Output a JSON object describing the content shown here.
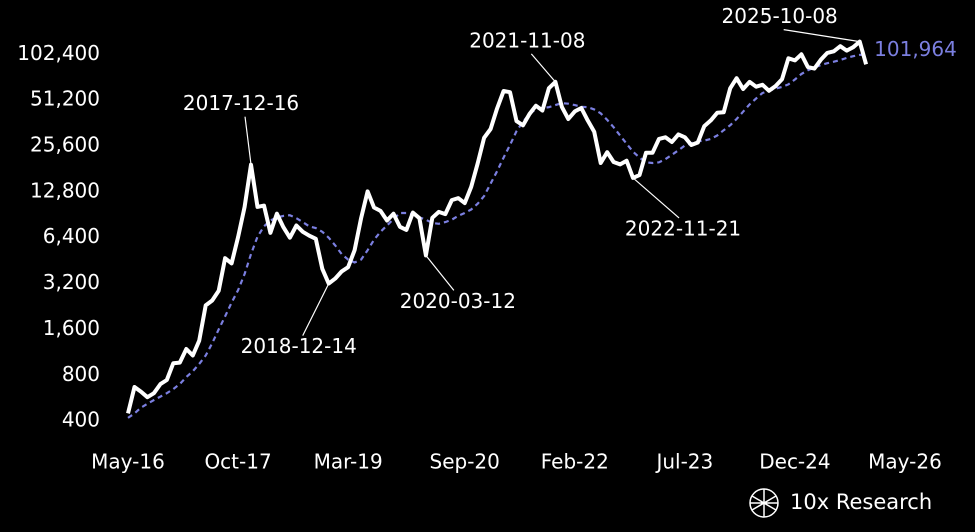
{
  "chart_data": {
    "type": "line",
    "log_scale": true,
    "grid": false,
    "x": [
      "2016-05",
      "2016-06",
      "2016-07",
      "2016-08",
      "2016-09",
      "2016-10",
      "2016-11",
      "2016-12",
      "2017-01",
      "2017-02",
      "2017-03",
      "2017-04",
      "2017-05",
      "2017-06",
      "2017-07",
      "2017-08",
      "2017-09",
      "2017-10",
      "2017-11",
      "2017-12",
      "2018-01",
      "2018-02",
      "2018-03",
      "2018-04",
      "2018-05",
      "2018-06",
      "2018-07",
      "2018-08",
      "2018-09",
      "2018-10",
      "2018-11",
      "2018-12",
      "2019-01",
      "2019-02",
      "2019-03",
      "2019-04",
      "2019-05",
      "2019-06",
      "2019-07",
      "2019-08",
      "2019-09",
      "2019-10",
      "2019-11",
      "2019-12",
      "2020-01",
      "2020-02",
      "2020-03",
      "2020-04",
      "2020-05",
      "2020-06",
      "2020-07",
      "2020-08",
      "2020-09",
      "2020-10",
      "2020-11",
      "2020-12",
      "2021-01",
      "2021-02",
      "2021-03",
      "2021-04",
      "2021-05",
      "2021-06",
      "2021-07",
      "2021-08",
      "2021-09",
      "2021-10",
      "2021-11",
      "2021-12",
      "2022-01",
      "2022-02",
      "2022-03",
      "2022-04",
      "2022-05",
      "2022-06",
      "2022-07",
      "2022-08",
      "2022-09",
      "2022-10",
      "2022-11",
      "2022-12",
      "2023-01",
      "2023-02",
      "2023-03",
      "2023-04",
      "2023-05",
      "2023-06",
      "2023-07",
      "2023-08",
      "2023-09",
      "2023-10",
      "2023-11",
      "2023-12",
      "2024-01",
      "2024-02",
      "2024-03",
      "2024-04",
      "2024-05",
      "2024-06",
      "2024-07",
      "2024-08",
      "2024-09",
      "2024-10",
      "2024-11",
      "2024-12",
      "2025-01",
      "2025-02",
      "2025-03",
      "2025-04",
      "2025-05",
      "2025-06",
      "2025-07",
      "2025-08",
      "2025-09",
      "2025-10",
      "2025-11"
    ],
    "series": [
      {
        "color": "#ffffff",
        "dashed": false,
        "values": [
          450,
          670,
          625,
          575,
          610,
          700,
          745,
          960,
          970,
          1190,
          1080,
          1350,
          2300,
          2480,
          2870,
          4700,
          4340,
          6470,
          10200,
          19300,
          10200,
          10400,
          6900,
          9200,
          7500,
          6400,
          7700,
          7000,
          6600,
          6300,
          4000,
          3200,
          3450,
          3850,
          4100,
          5300,
          8600,
          12900,
          10100,
          9600,
          8300,
          9200,
          7550,
          7200,
          9350,
          8600,
          4900,
          8650,
          9450,
          9150,
          11300,
          11650,
          10800,
          13800,
          19700,
          29000,
          33100,
          45200,
          58800,
          57700,
          37300,
          35000,
          41500,
          47100,
          43800,
          61300,
          67500,
          46300,
          38500,
          43200,
          45500,
          37700,
          31800,
          19800,
          23300,
          20100,
          19400,
          20500,
          15800,
          16500,
          23100,
          23100,
          28500,
          29200,
          27200,
          30500,
          29200,
          26000,
          27000,
          34600,
          37700,
          42300,
          42600,
          61200,
          71300,
          60600,
          67500,
          62700,
          64600,
          59000,
          63300,
          70200,
          96400,
          93400,
          102400,
          84400,
          82500,
          94200,
          104600,
          107100,
          115700,
          108200,
          114000,
          124000,
          88000
        ]
      },
      {
        "color": "#7b7fe0",
        "dashed": true,
        "values": [
          420,
          450,
          490,
          520,
          550,
          580,
          610,
          650,
          700,
          780,
          850,
          950,
          1080,
          1300,
          1600,
          1950,
          2400,
          2900,
          3700,
          5000,
          6500,
          7600,
          8300,
          8700,
          8900,
          9000,
          8600,
          8100,
          7600,
          7400,
          7000,
          6400,
          5700,
          5000,
          4600,
          4400,
          4600,
          5300,
          6200,
          7000,
          7700,
          8500,
          9300,
          9300,
          9100,
          8700,
          8400,
          8000,
          7900,
          8100,
          8400,
          8900,
          9300,
          9800,
          10700,
          12000,
          14500,
          17500,
          21500,
          26000,
          32000,
          37000,
          41500,
          44800,
          45500,
          46000,
          47500,
          49000,
          48500,
          47500,
          46300,
          46000,
          44500,
          42000,
          38000,
          34000,
          30000,
          26500,
          23500,
          21500,
          20000,
          19800,
          20000,
          21000,
          22400,
          24000,
          25800,
          26700,
          27500,
          27800,
          28500,
          30000,
          32500,
          35000,
          38500,
          43000,
          48000,
          52500,
          57000,
          59000,
          61000,
          62500,
          65000,
          70000,
          76000,
          80500,
          84000,
          87000,
          89500,
          91500,
          94000,
          97000,
          99500,
          101500,
          101964
        ],
        "value_labels": [
          null,
          null,
          null,
          null,
          null,
          null,
          null,
          null,
          null,
          null,
          null,
          null,
          null,
          null,
          null,
          null,
          null,
          null,
          null,
          null,
          null,
          null,
          null,
          null,
          null,
          null,
          null,
          null,
          null,
          null,
          null,
          null,
          null,
          null,
          null,
          null,
          null,
          null,
          null,
          null,
          null,
          null,
          null,
          null,
          null,
          null,
          null,
          null,
          null,
          null,
          null,
          null,
          null,
          null,
          null,
          null,
          null,
          null,
          null,
          null,
          null,
          null,
          null,
          null,
          null,
          null,
          null,
          null,
          null,
          null,
          null,
          null,
          null,
          null,
          null,
          null,
          null,
          null,
          null,
          null,
          null,
          null,
          null,
          null,
          null,
          null,
          null,
          null,
          null,
          null,
          null,
          null,
          null,
          null,
          null,
          null,
          null,
          null,
          null,
          null,
          null,
          null,
          null,
          null,
          null,
          null,
          null,
          null,
          null,
          null,
          null,
          null,
          null,
          null,
          "101,964"
        ]
      }
    ],
    "xlim": [
      "2016-05",
      "2026-05"
    ],
    "xticks": [
      {
        "value": "2016-05",
        "label": "May-16"
      },
      {
        "value": "2017-10",
        "label": "Oct-17"
      },
      {
        "value": "2019-03",
        "label": "Mar-19"
      },
      {
        "value": "2020-09",
        "label": "Sep-20"
      },
      {
        "value": "2022-02",
        "label": "Feb-22"
      },
      {
        "value": "2023-07",
        "label": "Jul-23"
      },
      {
        "value": "2024-12",
        "label": "Dec-24"
      },
      {
        "value": "2026-05",
        "label": "May-26"
      }
    ],
    "ylim": [
      350,
      200000
    ],
    "yticks": [
      400,
      800,
      {
        "value": 1600,
        "label": "1,600"
      },
      {
        "value": 3200,
        "label": "3,200"
      },
      {
        "value": 6400,
        "label": "6,400"
      },
      {
        "value": 12800,
        "label": "12,800"
      },
      {
        "value": 25600,
        "label": "25,600"
      },
      {
        "value": 51200,
        "label": "51,200"
      },
      {
        "value": 102400,
        "label": "102,400"
      }
    ],
    "annotations": [
      {
        "text": "2017-12-16"
      },
      {
        "text": "2018-12-14"
      },
      {
        "text": "2020-03-12"
      },
      {
        "text": "2021-11-08"
      },
      {
        "text": "2022-11-21"
      },
      {
        "text": "2025-10-08"
      }
    ],
    "brand": "10x Research"
  }
}
